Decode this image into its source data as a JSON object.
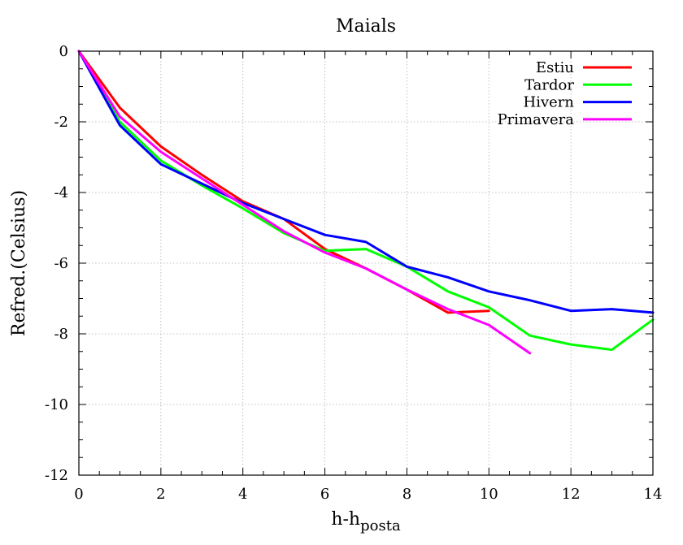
{
  "chart_data": {
    "type": "line",
    "title": "Maials",
    "xlabel_main": "h-h",
    "xlabel_sub": "posta",
    "ylabel": "Refred.(Celsius)",
    "xlim": [
      0,
      14
    ],
    "ylim": [
      -12,
      0
    ],
    "xticks": [
      0,
      2,
      4,
      6,
      8,
      10,
      12,
      14
    ],
    "yticks": [
      0,
      -2,
      -4,
      -6,
      -8,
      -10,
      -12
    ],
    "grid": true,
    "legend_position": "top-right",
    "series": [
      {
        "name": "Estiu",
        "color": "#ff0000",
        "x": [
          0,
          1,
          2,
          3,
          4,
          5,
          6,
          7,
          8,
          9,
          10
        ],
        "y": [
          0,
          -1.6,
          -2.7,
          -3.5,
          -4.25,
          -4.75,
          -5.6,
          -6.15,
          -6.75,
          -7.4,
          -7.35
        ]
      },
      {
        "name": "Tardor",
        "color": "#00ff00",
        "x": [
          0,
          1,
          2,
          3,
          4,
          5,
          6,
          7,
          8,
          9,
          10,
          11,
          12,
          13,
          14
        ],
        "y": [
          0,
          -2.0,
          -3.1,
          -3.8,
          -4.45,
          -5.15,
          -5.65,
          -5.6,
          -6.1,
          -6.8,
          -7.25,
          -8.05,
          -8.3,
          -8.45,
          -7.6
        ]
      },
      {
        "name": "Hivern",
        "color": "#0000ff",
        "x": [
          0,
          1,
          2,
          3,
          4,
          5,
          6,
          7,
          8,
          9,
          10,
          11,
          12,
          13,
          14
        ],
        "y": [
          0,
          -2.1,
          -3.2,
          -3.75,
          -4.3,
          -4.75,
          -5.2,
          -5.4,
          -6.1,
          -6.4,
          -6.8,
          -7.05,
          -7.35,
          -7.3,
          -7.4
        ]
      },
      {
        "name": "Primavera",
        "color": "#ff00ff",
        "x": [
          0,
          1,
          2,
          3,
          4,
          5,
          6,
          7,
          8,
          9,
          10,
          11
        ],
        "y": [
          0,
          -1.85,
          -2.85,
          -3.6,
          -4.35,
          -5.1,
          -5.7,
          -6.15,
          -6.75,
          -7.3,
          -7.75,
          -8.55
        ]
      }
    ]
  }
}
